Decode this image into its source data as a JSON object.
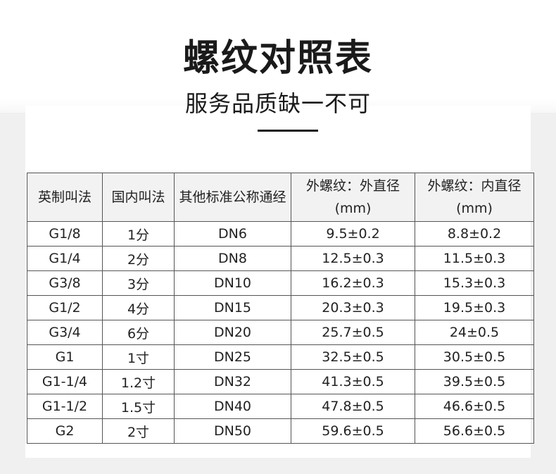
{
  "header": {
    "title": "螺纹对照表",
    "subtitle": "服务品质缺一不可"
  },
  "table": {
    "columns": [
      "英制叫法",
      "国内叫法",
      "其他标准公称通经",
      "外螺纹：外直径(mm)",
      "外螺纹：内直径(mm)"
    ],
    "rows": [
      [
        "G1/8",
        "1分",
        "DN6",
        "9.5±0.2",
        "8.8±0.2"
      ],
      [
        "G1/4",
        "2分",
        "DN8",
        "12.5±0.3",
        "11.5±0.3"
      ],
      [
        "G3/8",
        "3分",
        "DN10",
        "16.2±0.3",
        "15.3±0.3"
      ],
      [
        "G1/2",
        "4分",
        "DN15",
        "20.3±0.3",
        "19.5±0.3"
      ],
      [
        "G3/4",
        "6分",
        "DN20",
        "25.7±0.5",
        "24±0.5"
      ],
      [
        "G1",
        "1寸",
        "DN25",
        "32.5±0.5",
        "30.5±0.5"
      ],
      [
        "G1-1/4",
        "1.2寸",
        "DN32",
        "41.3±0.5",
        "39.5±0.5"
      ],
      [
        "G1-1/2",
        "1.5寸",
        "DN40",
        "47.8±0.5",
        "46.6±0.5"
      ],
      [
        "G2",
        "2寸",
        "DN50",
        "59.6±0.5",
        "56.6±0.5"
      ]
    ]
  }
}
